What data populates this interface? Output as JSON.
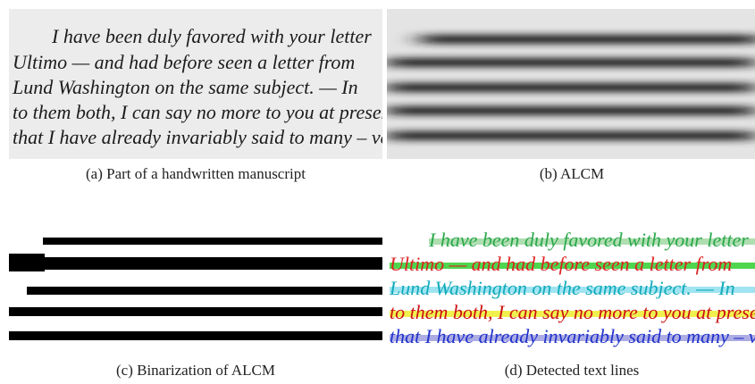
{
  "manuscript": {
    "lines": [
      "I have been duly favored with your letter",
      "Ultimo — and had before seen a letter from",
      "Lund Washington on the same subject. — In",
      "to them both, I can say no more to you at present",
      "that I have already invariably said to many – very"
    ]
  },
  "captions": [
    "(a) Part of a handwritten manuscript",
    "(b) ALCM",
    "(c) Binarization of ALCM",
    "(d) Detected text lines"
  ]
}
